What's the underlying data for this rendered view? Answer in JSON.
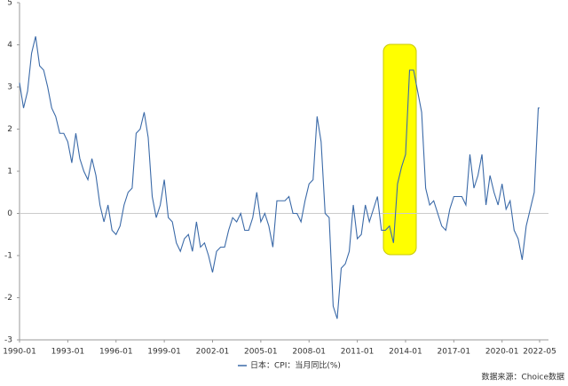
{
  "chart_data": {
    "type": "line",
    "x": [
      "1990-01",
      "1990-04",
      "1990-07",
      "1990-10",
      "1991-01",
      "1991-04",
      "1991-07",
      "1991-10",
      "1992-01",
      "1992-04",
      "1992-07",
      "1992-10",
      "1993-01",
      "1993-04",
      "1993-07",
      "1993-10",
      "1994-01",
      "1994-04",
      "1994-07",
      "1994-10",
      "1995-01",
      "1995-04",
      "1995-07",
      "1995-10",
      "1996-01",
      "1996-04",
      "1996-07",
      "1996-10",
      "1997-01",
      "1997-04",
      "1997-07",
      "1997-10",
      "1998-01",
      "1998-04",
      "1998-07",
      "1998-10",
      "1999-01",
      "1999-04",
      "1999-07",
      "1999-10",
      "2000-01",
      "2000-04",
      "2000-07",
      "2000-10",
      "2001-01",
      "2001-04",
      "2001-07",
      "2001-10",
      "2002-01",
      "2002-04",
      "2002-07",
      "2002-10",
      "2003-01",
      "2003-04",
      "2003-07",
      "2003-10",
      "2004-01",
      "2004-04",
      "2004-07",
      "2004-10",
      "2005-01",
      "2005-04",
      "2005-07",
      "2005-10",
      "2006-01",
      "2006-04",
      "2006-07",
      "2006-10",
      "2007-01",
      "2007-04",
      "2007-07",
      "2007-10",
      "2008-01",
      "2008-04",
      "2008-07",
      "2008-10",
      "2009-01",
      "2009-04",
      "2009-07",
      "2009-10",
      "2010-01",
      "2010-04",
      "2010-07",
      "2010-10",
      "2011-01",
      "2011-04",
      "2011-07",
      "2011-10",
      "2012-01",
      "2012-04",
      "2012-07",
      "2012-10",
      "2013-01",
      "2013-04",
      "2013-07",
      "2013-10",
      "2014-01",
      "2014-04",
      "2014-07",
      "2014-10",
      "2015-01",
      "2015-04",
      "2015-07",
      "2015-10",
      "2016-01",
      "2016-04",
      "2016-07",
      "2016-10",
      "2017-01",
      "2017-04",
      "2017-07",
      "2017-10",
      "2018-01",
      "2018-04",
      "2018-07",
      "2018-10",
      "2019-01",
      "2019-04",
      "2019-07",
      "2019-10",
      "2020-01",
      "2020-04",
      "2020-07",
      "2020-10",
      "2021-01",
      "2021-04",
      "2021-07",
      "2021-10",
      "2022-01",
      "2022-04",
      "2022-05"
    ],
    "series": [
      {
        "name": "日本：CPI：当月同比(%)",
        "color": "#3b6aa8",
        "values": [
          3.1,
          2.5,
          2.9,
          3.8,
          4.2,
          3.5,
          3.4,
          3.0,
          2.5,
          2.3,
          1.9,
          1.9,
          1.7,
          1.2,
          1.9,
          1.3,
          1.0,
          0.8,
          1.3,
          0.9,
          0.2,
          -0.2,
          0.2,
          -0.4,
          -0.5,
          -0.3,
          0.2,
          0.5,
          0.6,
          1.9,
          2.0,
          2.4,
          1.8,
          0.4,
          -0.1,
          0.2,
          0.8,
          -0.1,
          -0.2,
          -0.7,
          -0.9,
          -0.6,
          -0.5,
          -0.9,
          -0.2,
          -0.8,
          -0.7,
          -1.0,
          -1.4,
          -0.9,
          -0.8,
          -0.8,
          -0.4,
          -0.1,
          -0.2,
          0.0,
          -0.4,
          -0.4,
          -0.1,
          0.5,
          -0.2,
          0.0,
          -0.3,
          -0.8,
          0.3,
          0.3,
          0.3,
          0.4,
          0.0,
          0.0,
          -0.2,
          0.3,
          0.7,
          0.8,
          2.3,
          1.7,
          0.0,
          -0.1,
          -2.2,
          -2.5,
          -1.3,
          -1.2,
          -0.9,
          0.2,
          -0.6,
          -0.5,
          0.2,
          -0.2,
          0.1,
          0.4,
          -0.4,
          -0.4,
          -0.3,
          -0.7,
          0.7,
          1.1,
          1.4,
          3.4,
          3.4,
          2.9,
          2.4,
          0.6,
          0.2,
          0.3,
          0.0,
          -0.3,
          -0.4,
          0.1,
          0.4,
          0.4,
          0.4,
          0.2,
          1.4,
          0.6,
          0.9,
          1.4,
          0.2,
          0.9,
          0.5,
          0.2,
          0.7,
          0.1,
          0.3,
          -0.4,
          -0.6,
          -1.1,
          -0.3,
          0.1,
          0.5,
          2.5,
          2.5
        ]
      }
    ],
    "xlim": [
      "1990-01",
      "2022-05"
    ],
    "xticks": [
      "1990-01",
      "1993-01",
      "1996-01",
      "1999-01",
      "2002-01",
      "2005-01",
      "2008-01",
      "2011-01",
      "2014-01",
      "2017-01",
      "2020-01",
      "2022-05"
    ],
    "ylim": [
      -3,
      5
    ],
    "yticks": [
      -3,
      -2,
      -1,
      0,
      1,
      2,
      3,
      4,
      5
    ],
    "grid": false,
    "source": "数据来源：Choice数据"
  }
}
